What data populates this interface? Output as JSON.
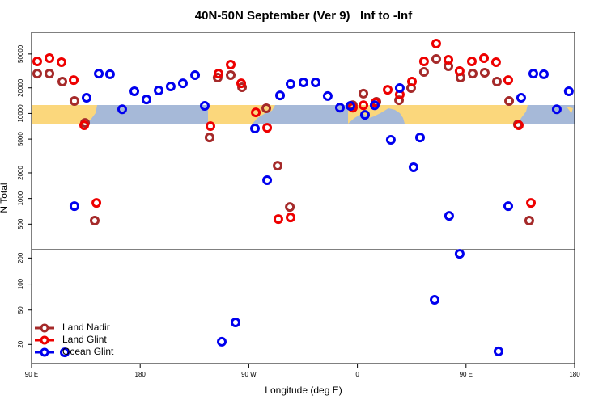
{
  "chart_data": {
    "type": "scatter",
    "title": "40N-50N September (Ver 9)   Inf to -Inf",
    "x_label": "Longitude (deg E)",
    "y_label": "N Total",
    "xlim": [
      90,
      540
    ],
    "xticks": [
      {
        "value": 90,
        "label": "90 E"
      },
      180,
      {
        "value": 270,
        "label": "90 W"
      },
      {
        "value": 360,
        "label": "0"
      },
      {
        "value": 450,
        "label": "90 E"
      },
      {
        "value": 540,
        "label": "180"
      }
    ],
    "log_scale": true,
    "legend": "bottomleft",
    "panels": [
      {
        "ylim": [
          250,
          90000
        ],
        "yticks": [
          500,
          1000,
          2000,
          5000,
          10000,
          20000,
          50000
        ]
      },
      {
        "ylim": [
          12,
          250
        ],
        "yticks": [
          20,
          50,
          100,
          200
        ]
      }
    ],
    "series": [
      {
        "name": "Land Nadir",
        "color": "#a52a2a",
        "x": [
          94.7,
          104.8,
          115.5,
          125.5,
          134.3,
          142.3,
          237.5,
          244.2,
          255.0,
          264.4,
          284.5,
          293.9,
          304.0,
          356.2,
          365.0,
          375.7,
          394.5,
          404.5,
          415.2,
          425.3,
          435.4,
          445.4,
          455.5,
          465.5,
          475.6,
          485.7,
          493.0,
          502.4
        ],
        "values": [
          29400,
          29400,
          23700,
          14000,
          7750,
          550,
          5220,
          26400,
          28200,
          20300,
          11500,
          2430,
          796,
          12500,
          17100,
          13700,
          14300,
          19900,
          30800,
          43700,
          35900,
          26400,
          29400,
          30100,
          23700,
          14000,
          7420,
          550
        ]
      },
      {
        "name": "Land Glint",
        "color": "#ee0000",
        "x": [
          94.7,
          104.8,
          114.8,
          124.9,
          133.6,
          143.7,
          238.2,
          244.9,
          255.0,
          263.7,
          275.8,
          285.2,
          294.5,
          304.6,
          356.2,
          365.0,
          375.0,
          385.1,
          395.1,
          405.2,
          415.2,
          425.3,
          435.4,
          444.7,
          454.8,
          464.9,
          474.9,
          485.0,
          493.7,
          503.8
        ],
        "values": [
          40900,
          44700,
          40000,
          24700,
          7260,
          887,
          7100,
          29400,
          37500,
          22600,
          10300,
          6790,
          573,
          598,
          11700,
          12500,
          13400,
          19000,
          16700,
          23700,
          40900,
          66200,
          42800,
          31500,
          40900,
          44700,
          40000,
          24700,
          7260,
          887
        ]
      },
      {
        "name": "Ocean Glint",
        "color": "#0000ee",
        "x": [
          125.5,
          117.5,
          135.6,
          145.7,
          155.0,
          165.1,
          175.2,
          185.2,
          195.3,
          205.3,
          215.4,
          225.5,
          233.5,
          247.6,
          259.0,
          275.1,
          285.2,
          295.9,
          304.6,
          315.3,
          325.4,
          335.4,
          345.5,
          354.2,
          366.3,
          374.3,
          387.7,
          395.1,
          406.5,
          411.9,
          424.0,
          436.0,
          444.7,
          476.9,
          485.0,
          495.7,
          505.8,
          514.5,
          525.2,
          535.2
        ],
        "values": [
          813,
          16.2,
          15300,
          29400,
          28900,
          11200,
          18200,
          14600,
          18600,
          20800,
          22600,
          28200,
          12300,
          21.5,
          36,
          6650,
          1640,
          16300,
          22200,
          23200,
          23200,
          16000,
          11700,
          12300,
          9640,
          12500,
          4900,
          19900,
          2330,
          5220,
          65.8,
          625,
          224,
          16.6,
          813,
          15300,
          29400,
          28900,
          11200,
          18200
        ]
      }
    ]
  }
}
